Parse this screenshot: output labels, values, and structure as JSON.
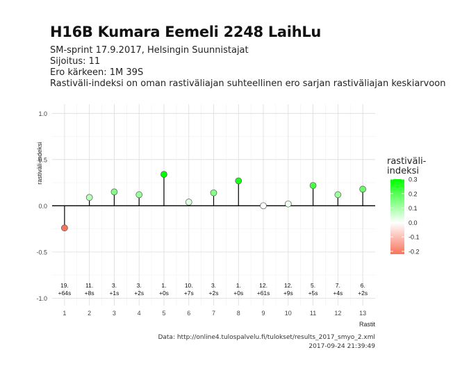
{
  "header": {
    "title": "H16B Kumara Eemeli 2248 LaihLu",
    "line1": "SM-sprint 17.9.2017, Helsingin Suunnistajat",
    "line2": "Sijoitus: 11",
    "line3": "Ero kärkeen: 1M 39S",
    "line4": "Rastiväli-indeksi on oman rastiväliajan suhteellinen ero sarjan rastiväliajan keskiarvoon"
  },
  "caption": {
    "source": "Data: http://online4.tulospalvelu.fi/tulokset/results_2017_smyo_2.xml",
    "timestamp": "2017-09-24 21:39:49"
  },
  "legend": {
    "title_line1": "rastiväli-",
    "title_line2": "indeksi",
    "ticks": [
      "0.3",
      "0.2",
      "0.1",
      "0.0",
      "-0.1",
      "-0.2"
    ],
    "tick_values": [
      0.3,
      0.2,
      0.1,
      0.0,
      -0.1,
      -0.2
    ],
    "range": [
      -0.22,
      0.3
    ],
    "colors": {
      "low": "#f8735a",
      "mid": "#ffffff",
      "high": "#00ff00"
    }
  },
  "chart_data": {
    "type": "lollipop",
    "xlabel": "Rastit",
    "ylabel": "rastiväli-indeksi",
    "ylim": [
      -1.0,
      1.0
    ],
    "yticks": [
      -1.0,
      -0.5,
      0.0,
      0.5,
      1.0
    ],
    "ytick_labels": [
      "-1.0",
      "-0.5",
      "0.0",
      "0.5",
      "1.0"
    ],
    "x": [
      1,
      2,
      3,
      4,
      5,
      6,
      7,
      8,
      9,
      10,
      11,
      12,
      13
    ],
    "values": [
      -0.24,
      0.09,
      0.15,
      0.12,
      0.34,
      0.04,
      0.14,
      0.27,
      0.0,
      0.02,
      0.22,
      0.12,
      0.18
    ],
    "rank_labels": [
      "19.",
      "11.",
      "3.",
      "3.",
      "1.",
      "10.",
      "3.",
      "1.",
      "12.",
      "12.",
      "5.",
      "7.",
      "6."
    ],
    "diff_labels": [
      "+64s",
      "+8s",
      "+1s",
      "+2s",
      "+0s",
      "+7s",
      "+2s",
      "+0s",
      "+61s",
      "+9s",
      "+5s",
      "+4s",
      "+2s"
    ],
    "grid": true
  }
}
